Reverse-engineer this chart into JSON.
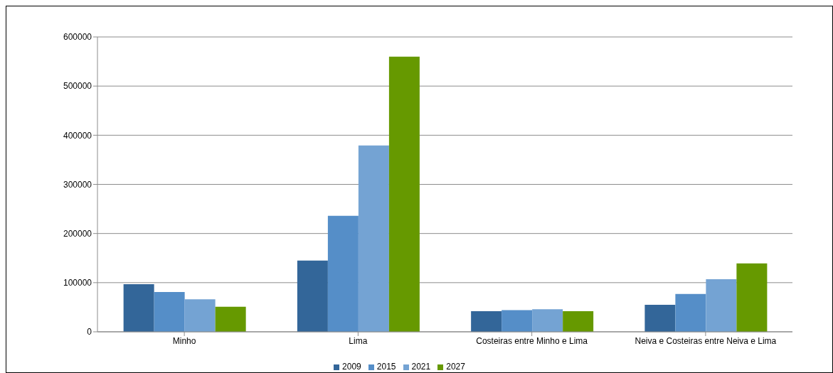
{
  "chart_data": {
    "type": "bar",
    "categories": [
      "Minho",
      "Lima",
      "Costeiras entre Minho e Lima",
      "Neiva e Costeiras entre Neiva e Lima"
    ],
    "series": [
      {
        "name": "2009",
        "color": "#336699",
        "values": [
          97000,
          145000,
          42000,
          55000
        ]
      },
      {
        "name": "2015",
        "color": "#558ec8",
        "values": [
          81000,
          236000,
          44000,
          77000
        ]
      },
      {
        "name": "2021",
        "color": "#74a3d3",
        "values": [
          66000,
          379000,
          46000,
          107000
        ]
      },
      {
        "name": "2027",
        "color": "#669900",
        "values": [
          51000,
          560000,
          42000,
          139000
        ]
      }
    ],
    "ylim": [
      0,
      600000
    ],
    "yticks": [
      0,
      100000,
      200000,
      300000,
      400000,
      500000,
      600000
    ],
    "grid": "y",
    "legend": "bottom"
  }
}
